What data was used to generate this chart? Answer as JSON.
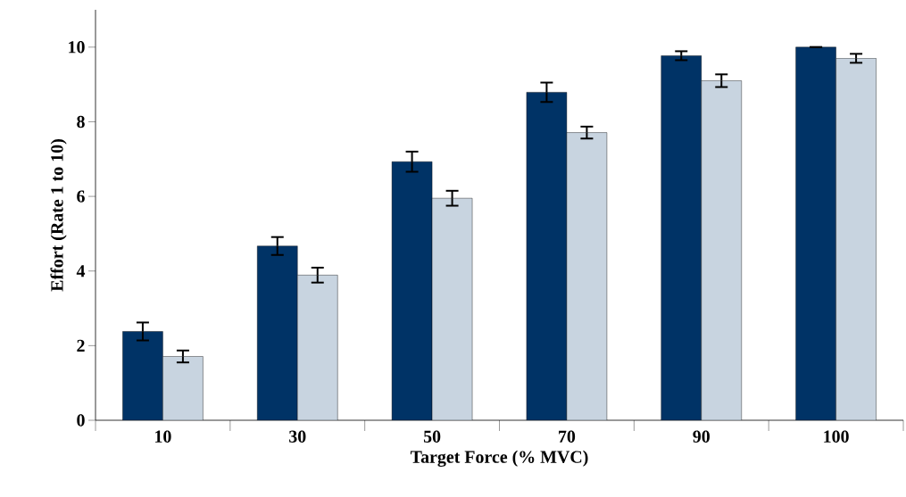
{
  "chart_data": {
    "type": "bar",
    "xlabel": "Target Force (% MVC)",
    "ylabel": "Effort (Rate 1 to 10)",
    "categories": [
      "10",
      "30",
      "50",
      "70",
      "90",
      "100"
    ],
    "series": [
      {
        "color": "#003366",
        "values": [
          2.38,
          4.67,
          6.93,
          8.79,
          9.77,
          10.0
        ],
        "errors": [
          0.24,
          0.24,
          0.27,
          0.26,
          0.12,
          0
        ]
      },
      {
        "color": "#c8d4e0",
        "values": [
          1.71,
          3.89,
          5.95,
          7.71,
          9.1,
          9.7
        ],
        "errors": [
          0.16,
          0.2,
          0.2,
          0.16,
          0.17,
          0.12
        ]
      }
    ],
    "ylim": [
      0,
      11
    ],
    "yticks": [
      0,
      2,
      4,
      6,
      8,
      10
    ]
  }
}
